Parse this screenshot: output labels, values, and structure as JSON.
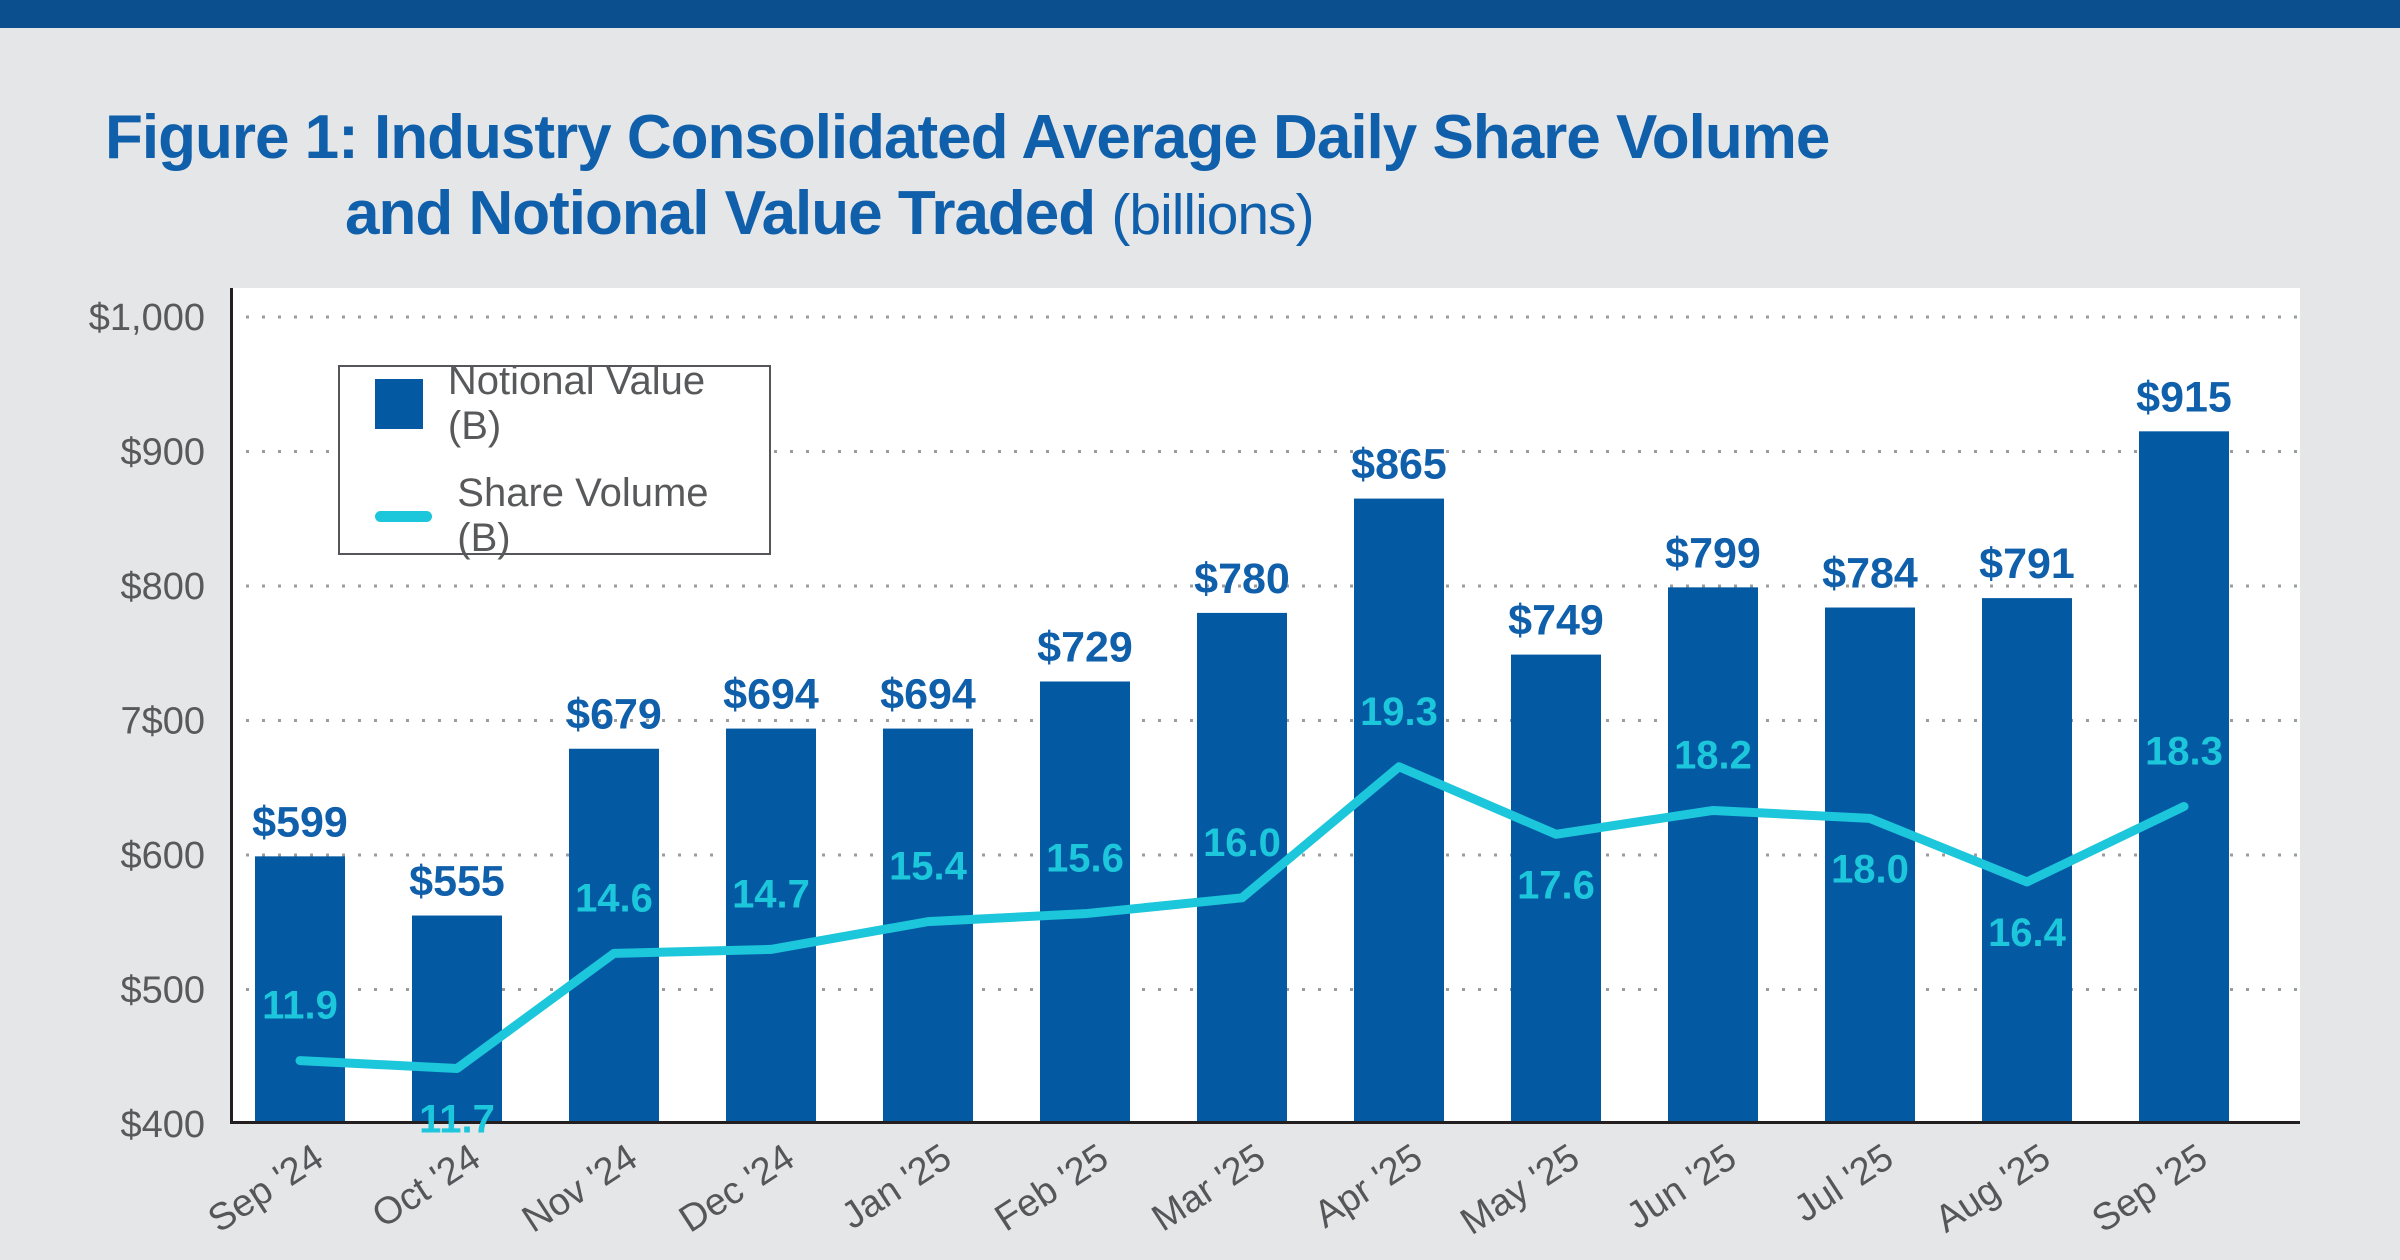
{
  "page": {
    "background": "#E5E6E8",
    "top_bar_color": "#0B4F8F"
  },
  "title": {
    "line1": "Figure 1: Industry Consolidated Average Daily Share Volume",
    "line2_bold": "and Notional Value Traded",
    "line2_suffix": "(billions)"
  },
  "legend": {
    "items": [
      {
        "label": "Notional Value (B)",
        "swatch": "square"
      },
      {
        "label": "Share Volume (B)",
        "swatch": "line"
      }
    ]
  },
  "colors": {
    "bar_blue": "#0459A3",
    "cyan": "#1CC6DB",
    "title_blue": "#0F5FAB",
    "text_gray": "#58595B",
    "axis_dark": "#231F20",
    "grid_dot": "#9B9C9E",
    "plot_background": "#FFFFFF"
  },
  "chart_data": {
    "type": "bar",
    "subtype": "bar-and-line combo",
    "title": "Figure 1: Industry Consolidated Average Daily Share Volume and Notional Value Traded (billions)",
    "categories": [
      "Sep '24",
      "Oct '24",
      "Nov '24",
      "Dec '24",
      "Jan '25",
      "Feb '25",
      "Mar '25",
      "Apr '25",
      "May '25",
      "Jun '25",
      "Jul '25",
      "Aug '25",
      "Sep '25"
    ],
    "series": [
      {
        "name": "Notional Value (B)",
        "type": "bar",
        "color": "#0459A3",
        "values": [
          599,
          555,
          679,
          694,
          694,
          729,
          780,
          865,
          749,
          799,
          784,
          791,
          915
        ],
        "labels": [
          "$599",
          "$555",
          "$679",
          "$694",
          "$694",
          "$729",
          "$780",
          "$865",
          "$749",
          "$799",
          "$784",
          "$791",
          "$915"
        ]
      },
      {
        "name": "Share Volume (B)",
        "type": "line",
        "color": "#1CC6DB",
        "values": [
          11.9,
          11.7,
          14.6,
          14.7,
          15.4,
          15.6,
          16.0,
          19.3,
          17.6,
          18.2,
          18.0,
          16.4,
          18.3
        ],
        "labels": [
          "11.9",
          "11.7",
          "14.6",
          "14.7",
          "15.4",
          "15.6",
          "16.0",
          "19.3",
          "17.6",
          "18.2",
          "18.0",
          "16.4",
          "18.3"
        ],
        "label_below_indices": [
          1,
          8,
          10,
          11
        ]
      }
    ],
    "y_axis": {
      "min": 400,
      "max": 1000,
      "tick_step": 100,
      "ticks": [
        {
          "label": "$1,000",
          "value": 1000
        },
        {
          "label": "$900",
          "value": 900
        },
        {
          "label": "$800",
          "value": 800
        },
        {
          "label": "7$00",
          "value": 700
        },
        {
          "label": "$600",
          "value": 600
        },
        {
          "label": "$500",
          "value": 500
        },
        {
          "label": "$400",
          "value": 400
        }
      ]
    },
    "xlabel": "",
    "ylabel": "",
    "grid": "dotted horizontal gridlines",
    "legend_position": "top-left inside plot area"
  }
}
